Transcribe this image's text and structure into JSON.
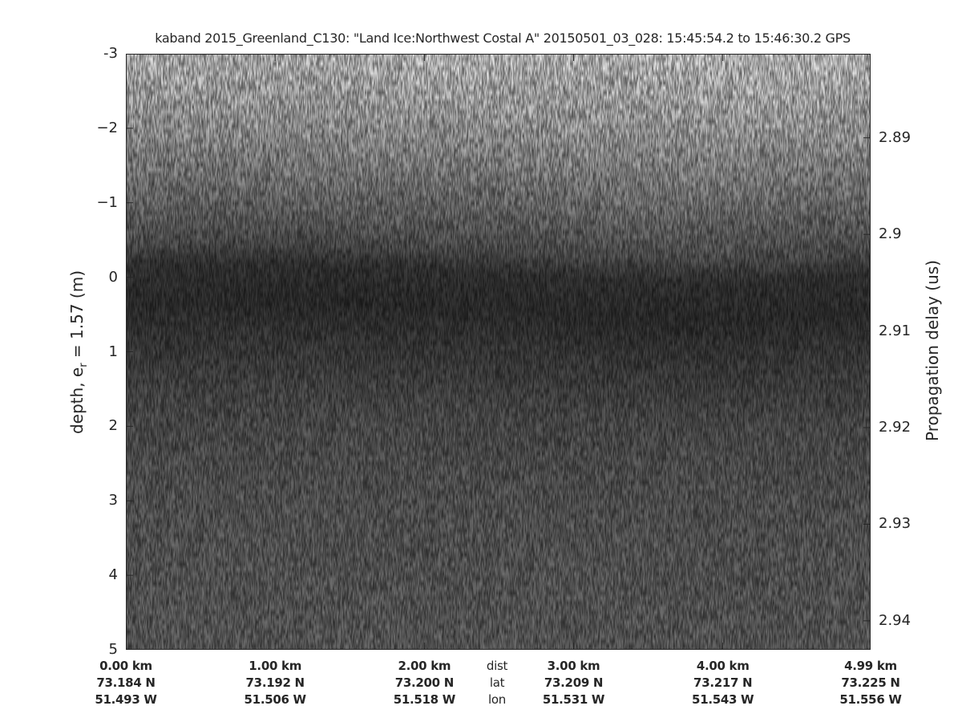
{
  "chart_data": {
    "type": "heatmap",
    "title": "kaband 2015_Greenland_C130: \"Land Ice:Northwest Costal A\"  20150501_03_028: 15:45:54.2 to 15:46:30.2 GPS",
    "ylabel_left": "depth, e",
    "ylabel_left_sub": "r",
    "ylabel_left_suffix": " = 1.57 (m)",
    "ylabel_right": "Propagation delay (us)",
    "ylim_left": [
      -3,
      5
    ],
    "yticks_left": [
      "-3",
      "−2",
      "−1",
      "0",
      "1",
      "2",
      "3",
      "4",
      "5"
    ],
    "yticks_left_values": [
      -3,
      -2,
      -1,
      0,
      1,
      2,
      3,
      4,
      5
    ],
    "yticks_right": [
      "2.89",
      "2.9",
      "2.91",
      "2.92",
      "2.93",
      "2.94"
    ],
    "yticks_right_values": [
      2.89,
      2.9,
      2.91,
      2.92,
      2.93,
      2.94
    ],
    "ylim_right": [
      2.8813,
      2.943
    ],
    "xlim_km": [
      0,
      4.99
    ],
    "x_label_rows": [
      "dist",
      "lat",
      "lon"
    ],
    "x_ticks": [
      {
        "km": 0.0,
        "dist": "0.00 km",
        "lat": "73.184 N",
        "lon": "51.493 W"
      },
      {
        "km": 1.0,
        "dist": "1.00 km",
        "lat": "73.192 N",
        "lon": "51.506 W"
      },
      {
        "km": 2.0,
        "dist": "2.00 km",
        "lat": "73.200 N",
        "lon": "51.518 W"
      },
      {
        "km": 3.0,
        "dist": "3.00 km",
        "lat": "73.209 N",
        "lon": "51.531 W"
      },
      {
        "km": 4.0,
        "dist": "4.00 km",
        "lat": "73.217 N",
        "lon": "51.543 W"
      },
      {
        "km": 4.99,
        "dist": "4.99 km",
        "lat": "73.225 N",
        "lon": "51.556 W"
      }
    ],
    "colormap": "gray",
    "depth_profile": {
      "depth_m": [
        -3,
        -2,
        -1,
        -0.3,
        0,
        0.5,
        1,
        2,
        3,
        4,
        5
      ],
      "intensity": [
        170,
        140,
        100,
        70,
        45,
        40,
        50,
        68,
        75,
        78,
        80
      ]
    }
  }
}
